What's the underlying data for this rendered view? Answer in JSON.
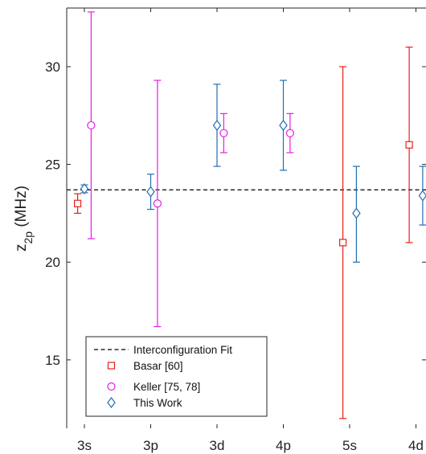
{
  "chart_data": {
    "type": "scatter",
    "ylabel_main": "z",
    "ylabel_sub": "2p",
    "ylabel_unit": " (MHz)",
    "xlabel": "",
    "categories": [
      "3s",
      "3p",
      "3d",
      "4p",
      "5s",
      "4d"
    ],
    "ylim": [
      11.5,
      33
    ],
    "yticks": [
      15,
      20,
      25,
      30
    ],
    "fit_value": 23.7,
    "series": [
      {
        "name": "Basar [60]",
        "color": "#e8201a",
        "marker": "square",
        "offset": -0.35,
        "points": [
          {
            "x": "3s",
            "y": 23.0,
            "lo": 22.5,
            "hi": 23.5
          },
          {
            "x": "5s",
            "y": 21.0,
            "lo": 12.0,
            "hi": 30.0
          },
          {
            "x": "4d",
            "y": 26.0,
            "lo": 21.0,
            "hi": 31.0
          }
        ]
      },
      {
        "name": "Keller [75, 78]",
        "color": "#e61ce6",
        "marker": "circle",
        "offset": 0.35,
        "points": [
          {
            "x": "3s",
            "y": 27.0,
            "lo": 21.2,
            "hi": 32.8
          },
          {
            "x": "3p",
            "y": 23.0,
            "lo": 16.7,
            "hi": 29.3
          },
          {
            "x": "3d",
            "y": 26.6,
            "lo": 25.6,
            "hi": 27.6
          },
          {
            "x": "4p",
            "y": 26.6,
            "lo": 25.6,
            "hi": 27.6
          }
        ]
      },
      {
        "name": "This Work",
        "color": "#1f6fb2",
        "marker": "diamond",
        "offset": 0.0,
        "offsets": {
          "3s": 0.0,
          "3p": 0.0,
          "3d": 0.0,
          "4p": 0.0,
          "5s": 0.35,
          "4d": 0.35
        },
        "points": [
          {
            "x": "3s",
            "y": 23.75,
            "lo": 23.55,
            "hi": 23.95
          },
          {
            "x": "3p",
            "y": 23.6,
            "lo": 22.7,
            "hi": 24.5
          },
          {
            "x": "3d",
            "y": 27.0,
            "lo": 24.9,
            "hi": 29.1
          },
          {
            "x": "4p",
            "y": 27.0,
            "lo": 24.7,
            "hi": 29.3
          },
          {
            "x": "5s",
            "y": 22.5,
            "lo": 20.0,
            "hi": 24.9
          },
          {
            "x": "4d",
            "y": 23.4,
            "lo": 21.9,
            "hi": 24.9
          }
        ]
      }
    ],
    "legend": {
      "placement": "bottom-left",
      "entries": [
        {
          "label": "Interconfiguration Fit",
          "marker": "dashed-line",
          "color": "#000000"
        },
        {
          "label": "Basar [60]",
          "marker": "square",
          "color": "#e8201a"
        },
        {
          "label": "Keller [75, 78]",
          "marker": "circle",
          "color": "#e61ce6"
        },
        {
          "label": "This Work",
          "marker": "diamond",
          "color": "#1f6fb2"
        }
      ]
    }
  }
}
